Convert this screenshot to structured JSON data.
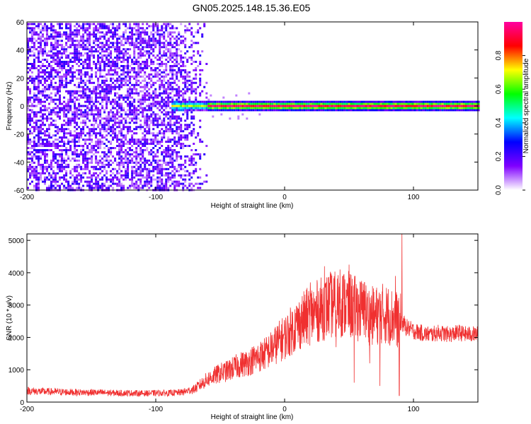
{
  "title": "GN05.2025.148.15.36.E05",
  "chart_data": [
    {
      "type": "heatmap",
      "xlabel": "Height of straight line (km)",
      "ylabel": "Frequency (Hz)",
      "xlim": [
        -200,
        150
      ],
      "ylim": [
        -60,
        60
      ],
      "xticks": [
        "-200",
        "-100",
        "0",
        "100"
      ],
      "xtick_values": [
        -200,
        -100,
        0,
        100
      ],
      "yticks": [
        "-60",
        "-40",
        "-20",
        "0",
        "20",
        "40",
        "60"
      ],
      "ytick_values": [
        -60,
        -40,
        -20,
        0,
        20,
        40,
        60
      ],
      "grid": false,
      "noise_region_x": [
        -200,
        -60
      ],
      "signal_band": {
        "x_start": -88,
        "x_end": 150,
        "center_hz": 0,
        "half_width_hz": 4
      },
      "colorbar": {
        "label": "Normalized spectral amplitude",
        "range": [
          0,
          1
        ],
        "ticks": [
          "0.0",
          "0.2",
          "0.4",
          "0.6",
          "0.8"
        ],
        "tick_values": [
          0.0,
          0.2,
          0.4,
          0.6,
          0.8
        ],
        "colors": [
          "#ffffff",
          "#8000ff",
          "#0000ff",
          "#00ffff",
          "#00ff00",
          "#ffff00",
          "#ff0000",
          "#ff00a0"
        ]
      }
    },
    {
      "type": "line",
      "xlabel": "Height of straight line (km)",
      "ylabel": "SNR (10 * v/v)",
      "xlim": [
        -200,
        150
      ],
      "ylim": [
        0,
        5200
      ],
      "xticks": [
        "-200",
        "-100",
        "0",
        "100"
      ],
      "xtick_values": [
        -200,
        -100,
        0,
        100
      ],
      "yticks": [
        "0",
        "1000",
        "2000",
        "3000",
        "4000",
        "5000"
      ],
      "ytick_values": [
        0,
        1000,
        2000,
        3000,
        4000,
        5000
      ],
      "grid": false,
      "color": "#f03030",
      "series": [
        {
          "x": [
            -200,
            -190,
            -180,
            -170,
            -160,
            -150,
            -140,
            -130,
            -120,
            -110,
            -100,
            -90,
            -80,
            -70,
            -65,
            -60,
            -55,
            -50,
            -45,
            -40,
            -35,
            -30,
            -25,
            -20,
            -15,
            -10,
            -5,
            0,
            5,
            10,
            15,
            20,
            25,
            30,
            35,
            40,
            45,
            50,
            55,
            60,
            65,
            70,
            75,
            80,
            85,
            90,
            95,
            100,
            105,
            110,
            115,
            120,
            125,
            130,
            135,
            140,
            145,
            150
          ],
          "values": [
            350,
            330,
            320,
            310,
            300,
            300,
            290,
            280,
            280,
            270,
            280,
            280,
            300,
            400,
            550,
            700,
            800,
            900,
            950,
            1050,
            1150,
            1200,
            1300,
            1400,
            1500,
            1650,
            1850,
            2000,
            2200,
            2400,
            2550,
            2700,
            2800,
            2900,
            3000,
            3000,
            3050,
            3000,
            2900,
            2850,
            2700,
            2650,
            2750,
            2700,
            2600,
            2500,
            2300,
            2200,
            2150,
            2100,
            2100,
            2150,
            2100,
            2100,
            2150,
            2100,
            2100,
            2100
          ],
          "spikes": [
            {
              "x": 20,
              "value": 3700
            },
            {
              "x": 31,
              "value": 4200
            },
            {
              "x": 36,
              "value": 3750
            },
            {
              "x": 43,
              "value": 4100
            },
            {
              "x": 50,
              "value": 4250
            },
            {
              "x": 62,
              "value": 3700
            },
            {
              "x": 86,
              "value": 3900
            },
            {
              "x": 91,
              "value": 5200
            }
          ],
          "dips": [
            {
              "x": 40,
              "value": 1700
            },
            {
              "x": 54,
              "value": 600
            },
            {
              "x": 66,
              "value": 1200
            },
            {
              "x": 74,
              "value": 500
            },
            {
              "x": 89,
              "value": 200
            }
          ]
        }
      ]
    }
  ]
}
